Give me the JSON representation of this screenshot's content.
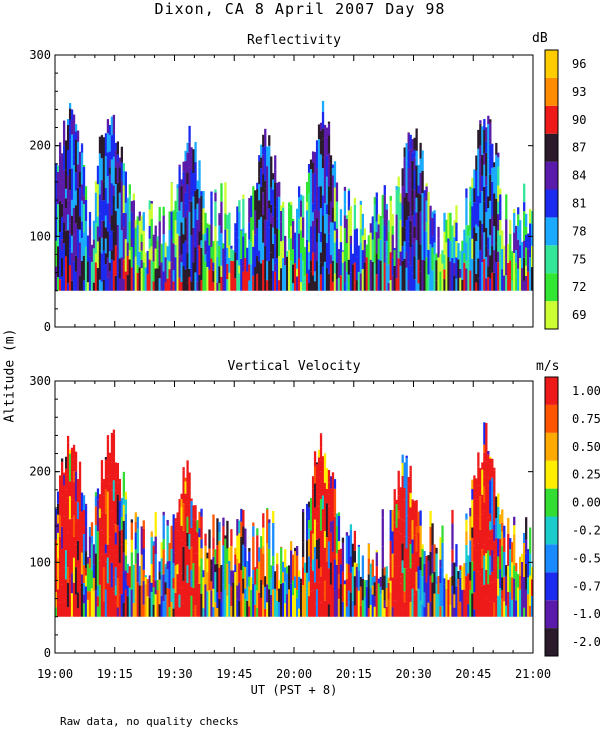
{
  "header": {
    "title": "Dixon, CA  8 April 2007  Day  98"
  },
  "footer": {
    "note": "Raw data, no quality checks"
  },
  "chart_data": [
    {
      "type": "heatmap",
      "title": "Reflectivity",
      "ylabel": "Altitude (m)",
      "xlabel": "UT  (PST + 8)",
      "x_ticks": [
        "19:00",
        "19:15",
        "19:30",
        "19:45",
        "20:00",
        "20:15",
        "20:30",
        "20:45",
        "21:00"
      ],
      "x_range": [
        "19:00",
        "21:00"
      ],
      "y_ticks": [
        0,
        100,
        200,
        300
      ],
      "ylim": [
        0,
        300
      ],
      "data_altitude_range_m": [
        40,
        260
      ],
      "colorbar": {
        "unit": "dB",
        "levels": [
          69,
          72,
          75,
          78,
          81,
          84,
          87,
          90,
          93,
          96
        ],
        "colors": [
          "#ccff33",
          "#33e633",
          "#33e699",
          "#1aaaff",
          "#1a2aee",
          "#5a1aaa",
          "#2a1a2a",
          "#ee1a1a",
          "#ff8c00",
          "#ffcc00"
        ]
      },
      "echo_top_peaks": [
        {
          "time": "19:04",
          "alt_m": 260
        },
        {
          "time": "19:14",
          "alt_m": 260
        },
        {
          "time": "19:34",
          "alt_m": 230
        },
        {
          "time": "19:53",
          "alt_m": 230
        },
        {
          "time": "20:07",
          "alt_m": 260
        },
        {
          "time": "20:30",
          "alt_m": 240
        },
        {
          "time": "20:48",
          "alt_m": 260
        }
      ]
    },
    {
      "type": "heatmap",
      "title": "Vertical Velocity",
      "ylabel": "Altitude (m)",
      "xlabel": "UT  (PST + 8)",
      "x_ticks": [
        "19:00",
        "19:15",
        "19:30",
        "19:45",
        "20:00",
        "20:15",
        "20:30",
        "20:45",
        "21:00"
      ],
      "x_range": [
        "19:00",
        "21:00"
      ],
      "y_ticks": [
        0,
        100,
        200,
        300
      ],
      "ylim": [
        0,
        300
      ],
      "data_altitude_range_m": [
        40,
        260
      ],
      "colorbar": {
        "unit": "m/s",
        "levels": [
          "-2.00",
          "-1.00",
          "-0.75",
          "-0.50",
          "-0.25",
          "0.00",
          "0.25",
          "0.50",
          "0.75",
          "1.00"
        ],
        "colors": [
          "#2a1a2a",
          "#5a1aaa",
          "#1a2aee",
          "#1a8aff",
          "#1acccc",
          "#33dd33",
          "#ffee00",
          "#ffaa00",
          "#ff5500",
          "#ee1a1a"
        ]
      },
      "updraft_plumes": [
        {
          "time": "19:04",
          "alt_m": 260
        },
        {
          "time": "19:14",
          "alt_m": 260
        },
        {
          "time": "19:33",
          "alt_m": 220
        },
        {
          "time": "20:07",
          "alt_m": 260
        },
        {
          "time": "20:28",
          "alt_m": 240
        },
        {
          "time": "20:48",
          "alt_m": 260
        }
      ]
    }
  ]
}
